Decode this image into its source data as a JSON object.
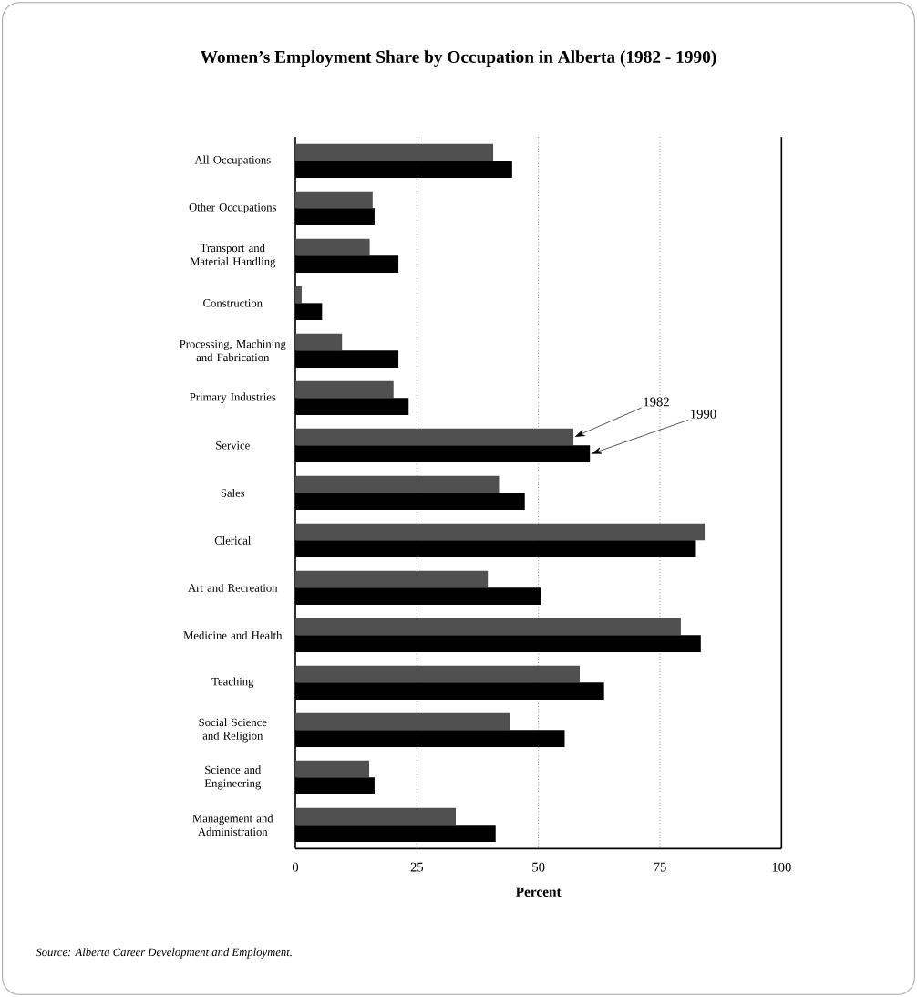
{
  "chart_data": {
    "type": "bar",
    "orientation": "horizontal",
    "title": "Women’s Employment Share by Occupation in Alberta (1982 - 1990)",
    "xlabel": "Percent",
    "categories": [
      "All Occupations",
      "Other Occupations",
      "Transport and Material Handling",
      "Construction",
      "Processing, Machining and Fabrication",
      "Primary Industries",
      "Service",
      "Sales",
      "Clerical",
      "Art and Recreation",
      "Medicine and Health",
      "Teaching",
      "Social Science and Religion",
      "Science and Engineering",
      "Management and Administration"
    ],
    "series": [
      {
        "name": "1982",
        "color": "#505050",
        "values": [
          40.7,
          15.9,
          15.3,
          1.3,
          9.6,
          20.2,
          57.2,
          41.9,
          84.2,
          39.6,
          79.3,
          58.5,
          44.2,
          15.2,
          33.0
        ]
      },
      {
        "name": "1990",
        "color": "#000000",
        "values": [
          44.6,
          16.3,
          21.2,
          5.5,
          21.2,
          23.3,
          60.6,
          47.2,
          82.4,
          50.5,
          83.4,
          63.5,
          55.4,
          16.3,
          41.2
        ]
      }
    ],
    "xlim": [
      0,
      100
    ],
    "xticks": [
      0,
      25,
      50,
      75,
      100
    ],
    "grid": "x",
    "annotations": [
      "*Source: Alberta Career Development and Employment.*"
    ]
  }
}
